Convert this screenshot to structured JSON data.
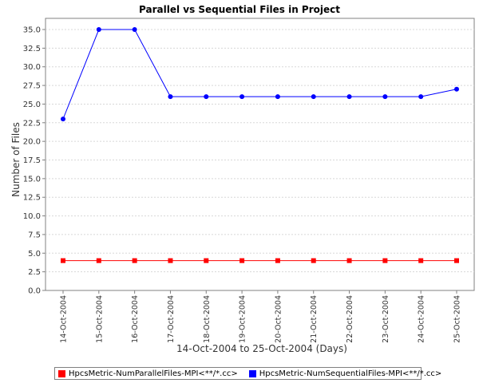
{
  "chart_data": {
    "type": "line",
    "title": "Parallel vs Sequential Files in Project",
    "xlabel": "14-Oct-2004 to 25-Oct-2004 (Days)",
    "ylabel": "Number of Files",
    "categories": [
      "14-Oct-2004",
      "15-Oct-2004",
      "16-Oct-2004",
      "17-Oct-2004",
      "18-Oct-2004",
      "19-Oct-2004",
      "20-Oct-2004",
      "21-Oct-2004",
      "22-Oct-2004",
      "23-Oct-2004",
      "24-Oct-2004",
      "25-Oct-2004"
    ],
    "yticks": [
      "0.0",
      "2.5",
      "5.0",
      "7.5",
      "10.0",
      "12.5",
      "15.0",
      "17.5",
      "20.0",
      "22.5",
      "25.0",
      "27.5",
      "30.0",
      "32.5",
      "35.0"
    ],
    "ylim": [
      0,
      36.5
    ],
    "grid": true,
    "legend_position": "bottom",
    "series": [
      {
        "name": "HpcsMetric-NumParallelFiles-MPI<**/*.cc>",
        "color": "#ff0000",
        "marker": "square",
        "values": [
          4,
          4,
          4,
          4,
          4,
          4,
          4,
          4,
          4,
          4,
          4,
          4
        ]
      },
      {
        "name": "HpcsMetric-NumSequentialFiles-MPI<**/*.cc>",
        "color": "#0000ff",
        "marker": "circle",
        "values": [
          23,
          35,
          35,
          26,
          26,
          26,
          26,
          26,
          26,
          26,
          26,
          27
        ]
      }
    ]
  }
}
